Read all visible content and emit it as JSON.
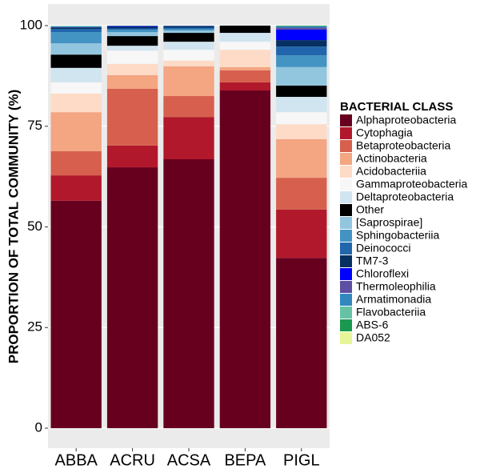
{
  "chart_data": {
    "type": "stacked-bar",
    "y_label": "PROPORTION OF TOTAL COMMUNITY (%)",
    "legend_title": "BACTERIAL CLASS",
    "categories": [
      "ABBA",
      "ACRU",
      "ACSA",
      "BEPA",
      "PIGL"
    ],
    "ylim": [
      0,
      100
    ],
    "yticks": [
      0,
      25,
      50,
      75,
      100
    ],
    "grid": true,
    "series": [
      {
        "name": "Alphaproteobacteria",
        "color": "#67001f",
        "values": [
          56.5,
          64.8,
          66.8,
          83.9,
          42.3
        ]
      },
      {
        "name": "Cytophagia",
        "color": "#b2182b",
        "values": [
          6.3,
          5.4,
          10.5,
          2.0,
          12.0
        ]
      },
      {
        "name": "Betaproteobacteria",
        "color": "#d6604d",
        "values": [
          6.0,
          14.1,
          5.2,
          3.0,
          7.9
        ]
      },
      {
        "name": "Actinobacteria",
        "color": "#f4a582",
        "values": [
          9.7,
          3.4,
          7.4,
          0.8,
          9.6
        ]
      },
      {
        "name": "Acidobacteriia",
        "color": "#fddbc7",
        "values": [
          4.6,
          2.8,
          1.4,
          4.3,
          3.7
        ]
      },
      {
        "name": "Gammaproteobacteria",
        "color": "#f7f7f7",
        "values": [
          2.8,
          3.3,
          2.7,
          2.0,
          3.0
        ]
      },
      {
        "name": "Deltaproteobacteria",
        "color": "#d1e5f0",
        "values": [
          3.6,
          1.2,
          2.0,
          2.2,
          3.8
        ]
      },
      {
        "name": "Other",
        "color": "#000000",
        "values": [
          3.3,
          2.4,
          2.2,
          1.8,
          2.8
        ]
      },
      {
        "name": "[Saprospirae]",
        "color": "#92c5de",
        "values": [
          2.8,
          1.0,
          0.6,
          0,
          4.6
        ]
      },
      {
        "name": "Sphingobacteriia",
        "color": "#4393c3",
        "values": [
          2.8,
          0.6,
          0.4,
          0,
          2.9
        ]
      },
      {
        "name": "Deinococci",
        "color": "#2166ac",
        "values": [
          0.8,
          0.3,
          0.3,
          0,
          2.2
        ]
      },
      {
        "name": "TM7-3",
        "color": "#053061",
        "values": [
          0.3,
          0.4,
          0.3,
          0,
          1.6
        ]
      },
      {
        "name": "Chloroflexi",
        "color": "#0000ff",
        "values": [
          0,
          0.1,
          0,
          0,
          2.6
        ]
      },
      {
        "name": "Thermoleophilia",
        "color": "#5e4fa2",
        "values": [
          0.1,
          0.1,
          0.1,
          0,
          0.5
        ]
      },
      {
        "name": "Armatimonadia",
        "color": "#3288bd",
        "values": [
          0.2,
          0.1,
          0.1,
          0,
          0.3
        ]
      },
      {
        "name": "Flavobacteriia",
        "color": "#66c2a5",
        "values": [
          0.1,
          0,
          0,
          0,
          0.1
        ]
      },
      {
        "name": "ABS-6",
        "color": "#1a9850",
        "values": [
          0,
          0,
          0,
          0,
          0.1
        ]
      },
      {
        "name": "DA052",
        "color": "#e6f598",
        "values": [
          0,
          0,
          0,
          0,
          0
        ]
      }
    ]
  }
}
